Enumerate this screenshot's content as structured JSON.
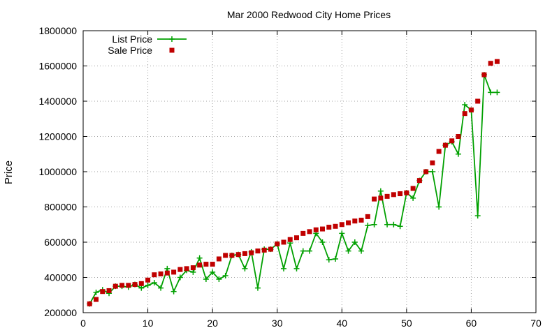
{
  "chart_data": {
    "type": "line",
    "title": "Mar 2000 Redwood City Home Prices",
    "xlabel": "",
    "ylabel": "Price",
    "xlim": [
      0,
      70
    ],
    "ylim": [
      200000,
      1800000
    ],
    "xticks": [
      0,
      10,
      20,
      30,
      40,
      50,
      60,
      70
    ],
    "yticks": [
      200000,
      400000,
      600000,
      800000,
      1000000,
      1200000,
      1400000,
      1600000,
      1800000
    ],
    "xtick_labels": [
      "0",
      "10",
      "20",
      "30",
      "40",
      "50",
      "60",
      "70"
    ],
    "ytick_labels": [
      "200000",
      "400000",
      "600000",
      "800000",
      "1000000",
      "1200000",
      "1400000",
      "1600000",
      "1800000"
    ],
    "grid": true,
    "legend_position": "top-left",
    "series": [
      {
        "name": "List Price",
        "type": "line",
        "marker": "plus",
        "color": "#00a000",
        "x": [
          1,
          2,
          3,
          4,
          5,
          6,
          7,
          8,
          9,
          10,
          11,
          12,
          13,
          14,
          15,
          16,
          17,
          18,
          19,
          20,
          21,
          22,
          23,
          24,
          25,
          26,
          27,
          28,
          29,
          30,
          31,
          32,
          33,
          34,
          35,
          36,
          37,
          38,
          39,
          40,
          41,
          42,
          43,
          44,
          45,
          46,
          47,
          48,
          49,
          50,
          51,
          52,
          53,
          54,
          55,
          56,
          57,
          58,
          59,
          60,
          61,
          62,
          63,
          64
        ],
        "y": [
          250000,
          315000,
          330000,
          310000,
          350000,
          350000,
          345000,
          360000,
          340000,
          355000,
          370000,
          340000,
          450000,
          320000,
          400000,
          440000,
          430000,
          510000,
          390000,
          430000,
          390000,
          410000,
          525000,
          530000,
          450000,
          545000,
          340000,
          560000,
          560000,
          590000,
          450000,
          595000,
          450000,
          550000,
          550000,
          650000,
          600000,
          500000,
          505000,
          650000,
          550000,
          600000,
          550000,
          695000,
          700000,
          890000,
          700000,
          700000,
          690000,
          880000,
          850000,
          950000,
          1000000,
          1000000,
          800000,
          1150000,
          1170000,
          1100000,
          1380000,
          1350000,
          750000,
          1550000,
          1450000,
          1450000
        ]
      },
      {
        "name": "Sale Price",
        "type": "scatter",
        "marker": "square",
        "color": "#c00000",
        "x": [
          1,
          2,
          3,
          4,
          5,
          6,
          7,
          8,
          9,
          10,
          11,
          12,
          13,
          14,
          15,
          16,
          17,
          18,
          19,
          20,
          21,
          22,
          23,
          24,
          25,
          26,
          27,
          28,
          29,
          30,
          31,
          32,
          33,
          34,
          35,
          36,
          37,
          38,
          39,
          40,
          41,
          42,
          43,
          44,
          45,
          46,
          47,
          48,
          49,
          50,
          51,
          52,
          53,
          54,
          55,
          56,
          57,
          58,
          59,
          60,
          61,
          62,
          63,
          64
        ],
        "y": [
          250000,
          275000,
          320000,
          325000,
          350000,
          355000,
          355000,
          360000,
          365000,
          385000,
          415000,
          420000,
          425000,
          430000,
          445000,
          450000,
          455000,
          470000,
          475000,
          475000,
          505000,
          525000,
          525000,
          530000,
          535000,
          540000,
          550000,
          555000,
          560000,
          590000,
          600000,
          615000,
          625000,
          650000,
          660000,
          670000,
          675000,
          685000,
          690000,
          700000,
          710000,
          720000,
          725000,
          745000,
          845000,
          850000,
          860000,
          870000,
          875000,
          880000,
          905000,
          950000,
          1000000,
          1050000,
          1115000,
          1150000,
          1175000,
          1200000,
          1330000,
          1350000,
          1400000,
          1550000,
          1615000,
          1625000
        ]
      }
    ]
  }
}
